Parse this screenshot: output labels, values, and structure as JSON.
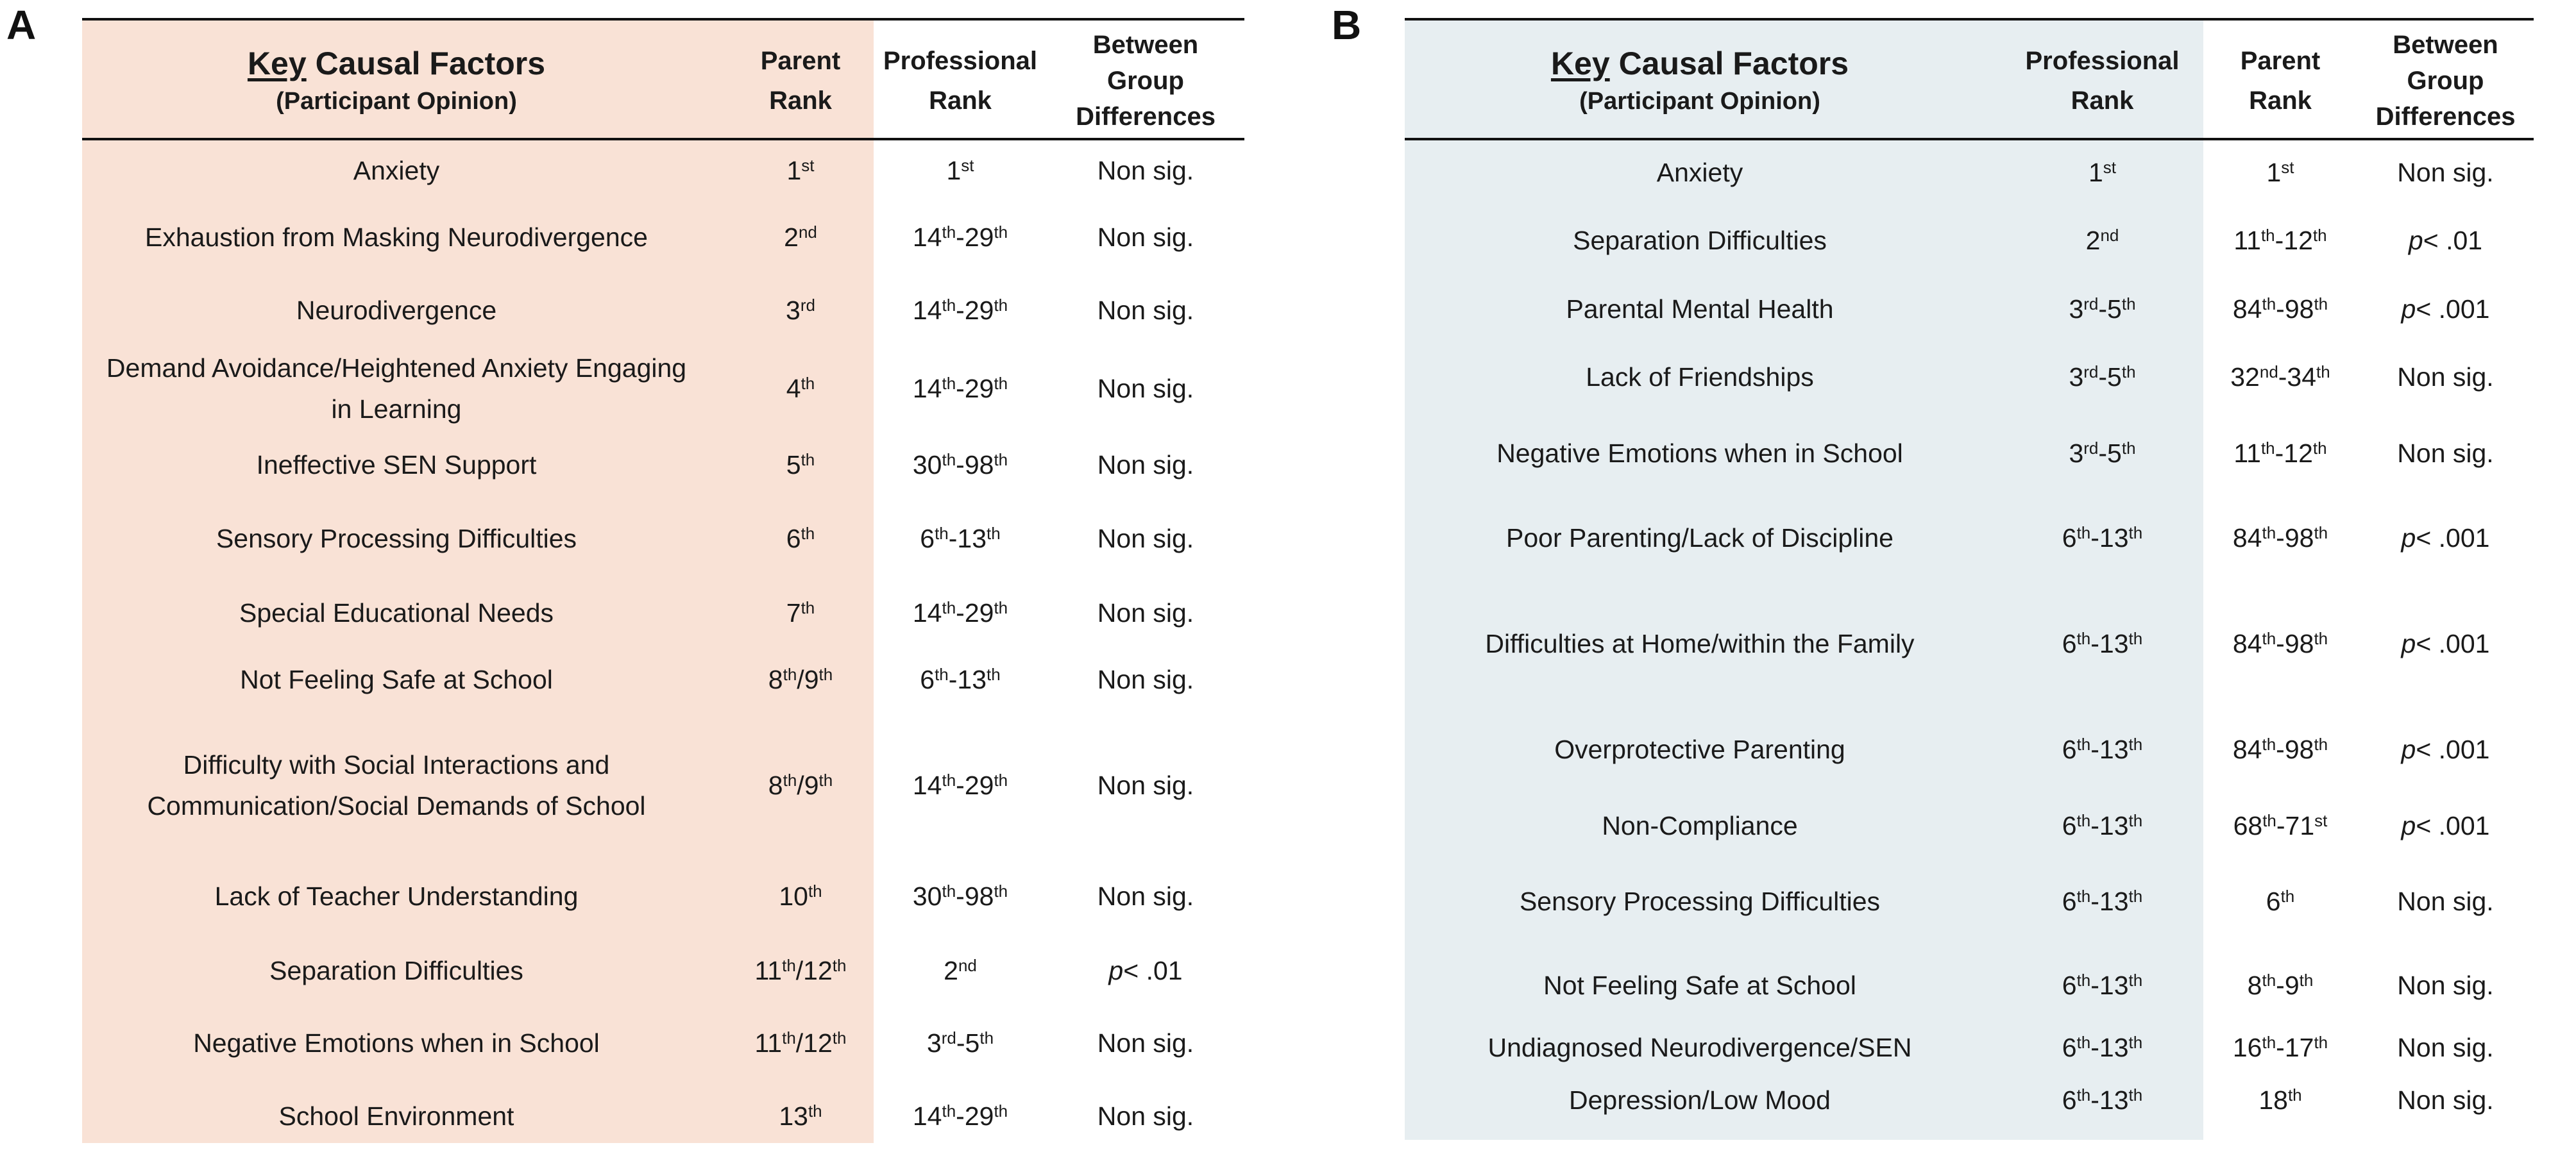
{
  "panel_a": {
    "label": "A",
    "headers": {
      "factor_key": "Key",
      "factor_rest": " Causal Factors",
      "factor_sub": "(Participant Opinion)",
      "col2": [
        "Parent",
        "Rank"
      ],
      "col3": [
        "Professional",
        "Rank"
      ],
      "col4": [
        "Between",
        "Group",
        "Differences"
      ]
    },
    "rows": [
      {
        "factor": "Anxiety",
        "r1": [
          [
            "1",
            "st"
          ]
        ],
        "r2": [
          [
            "1",
            "st"
          ]
        ],
        "diff": "Non sig."
      },
      {
        "factor": "Exhaustion from Masking Neurodivergence",
        "r1": [
          [
            "2",
            "nd"
          ]
        ],
        "r2": [
          [
            "14",
            "th"
          ],
          [
            "-29",
            "th"
          ]
        ],
        "diff": "Non sig."
      },
      {
        "factor": "Neurodivergence",
        "r1": [
          [
            "3",
            "rd"
          ]
        ],
        "r2": [
          [
            "14",
            "th"
          ],
          [
            "-29",
            "th"
          ]
        ],
        "diff": "Non sig."
      },
      {
        "factor": "Demand Avoidance/Heightened Anxiety Engaging in Learning",
        "r1": [
          [
            "4",
            "th"
          ]
        ],
        "r2": [
          [
            "14",
            "th"
          ],
          [
            "-29",
            "th"
          ]
        ],
        "diff": "Non sig."
      },
      {
        "factor": "Ineffective SEN Support",
        "r1": [
          [
            "5",
            "th"
          ]
        ],
        "r2": [
          [
            "30",
            "th"
          ],
          [
            "-98",
            "th"
          ]
        ],
        "diff": "Non sig."
      },
      {
        "factor": "Sensory Processing Difficulties",
        "r1": [
          [
            "6",
            "th"
          ]
        ],
        "r2": [
          [
            "6",
            "th"
          ],
          [
            "-13",
            "th"
          ]
        ],
        "diff": "Non sig."
      },
      {
        "factor": "Special Educational Needs",
        "r1": [
          [
            "7",
            "th"
          ]
        ],
        "r2": [
          [
            "14",
            "th"
          ],
          [
            "-29",
            "th"
          ]
        ],
        "diff": "Non sig."
      },
      {
        "factor": "Not Feeling Safe at School",
        "r1": [
          [
            "8",
            "th"
          ],
          [
            "/9",
            "th"
          ]
        ],
        "r2": [
          [
            "6",
            "th"
          ],
          [
            "-13",
            "th"
          ]
        ],
        "diff": "Non sig."
      },
      {
        "factor": "Difficulty with Social Interactions and Communication/Social Demands of School",
        "r1": [
          [
            "8",
            "th"
          ],
          [
            "/9",
            "th"
          ]
        ],
        "r2": [
          [
            "14",
            "th"
          ],
          [
            "-29",
            "th"
          ]
        ],
        "diff": "Non sig."
      },
      {
        "factor": "Lack of Teacher Understanding",
        "r1": [
          [
            "10",
            "th"
          ]
        ],
        "r2": [
          [
            "30",
            "th"
          ],
          [
            "-98",
            "th"
          ]
        ],
        "diff": "Non sig."
      },
      {
        "factor": "Separation Difficulties",
        "r1": [
          [
            "11",
            "th"
          ],
          [
            "/12",
            "th"
          ]
        ],
        "r2": [
          [
            "2",
            "nd"
          ]
        ],
        "diff": "p < .01"
      },
      {
        "factor": "Negative Emotions when in School",
        "r1": [
          [
            "11",
            "th"
          ],
          [
            "/12",
            "th"
          ]
        ],
        "r2": [
          [
            "3",
            "rd"
          ],
          [
            "-5",
            "th"
          ]
        ],
        "diff": "Non sig."
      },
      {
        "factor": "School Environment",
        "r1": [
          [
            "13",
            "th"
          ]
        ],
        "r2": [
          [
            "14",
            "th"
          ],
          [
            "-29",
            "th"
          ]
        ],
        "diff": "Non sig."
      }
    ]
  },
  "panel_b": {
    "label": "B",
    "headers": {
      "factor_key": "Key",
      "factor_rest": " Causal Factors",
      "factor_sub": "(Participant Opinion)",
      "col2": [
        "Professional",
        "Rank"
      ],
      "col3": [
        "Parent",
        "Rank"
      ],
      "col4": [
        "Between",
        "Group",
        "Differences"
      ]
    },
    "rows": [
      {
        "factor": "Anxiety",
        "r1": [
          [
            "1",
            "st"
          ]
        ],
        "r2": [
          [
            "1",
            "st"
          ]
        ],
        "diff": "Non sig."
      },
      {
        "factor": "Separation Difficulties",
        "r1": [
          [
            "2",
            "nd"
          ]
        ],
        "r2": [
          [
            "11",
            "th"
          ],
          [
            "-12",
            "th"
          ]
        ],
        "diff": "p < .01"
      },
      {
        "factor": "Parental Mental Health",
        "r1": [
          [
            "3",
            "rd"
          ],
          [
            "-5",
            "th"
          ]
        ],
        "r2": [
          [
            "84",
            "th"
          ],
          [
            "-98",
            "th"
          ]
        ],
        "diff": "p < .001"
      },
      {
        "factor": "Lack of Friendships",
        "r1": [
          [
            "3",
            "rd"
          ],
          [
            "-5",
            "th"
          ]
        ],
        "r2": [
          [
            "32",
            "nd"
          ],
          [
            "-34",
            "th"
          ]
        ],
        "diff": "Non sig."
      },
      {
        "factor": "Negative Emotions when in School",
        "r1": [
          [
            "3",
            "rd"
          ],
          [
            "-5",
            "th"
          ]
        ],
        "r2": [
          [
            "11",
            "th"
          ],
          [
            "-12",
            "th"
          ]
        ],
        "diff": "Non sig."
      },
      {
        "factor": "Poor Parenting/Lack of Discipline",
        "r1": [
          [
            "6",
            "th"
          ],
          [
            "-13",
            "th"
          ]
        ],
        "r2": [
          [
            "84",
            "th"
          ],
          [
            "-98",
            "th"
          ]
        ],
        "diff": "p < .001"
      },
      {
        "factor": "Difficulties at Home/within the Family",
        "r1": [
          [
            "6",
            "th"
          ],
          [
            "-13",
            "th"
          ]
        ],
        "r2": [
          [
            "84",
            "th"
          ],
          [
            "-98",
            "th"
          ]
        ],
        "diff": "p < .001"
      },
      {
        "factor": "Overprotective Parenting",
        "r1": [
          [
            "6",
            "th"
          ],
          [
            "-13",
            "th"
          ]
        ],
        "r2": [
          [
            "84",
            "th"
          ],
          [
            "-98",
            "th"
          ]
        ],
        "diff": "p < .001"
      },
      {
        "factor": "Non-Compliance",
        "r1": [
          [
            "6",
            "th"
          ],
          [
            "-13",
            "th"
          ]
        ],
        "r2": [
          [
            "68",
            "th"
          ],
          [
            "-71",
            "st"
          ]
        ],
        "diff": "p < .001"
      },
      {
        "factor": "Sensory Processing Difficulties",
        "r1": [
          [
            "6",
            "th"
          ],
          [
            "-13",
            "th"
          ]
        ],
        "r2": [
          [
            "6",
            "th"
          ]
        ],
        "diff": "Non sig."
      },
      {
        "factor": "Not Feeling Safe at School",
        "r1": [
          [
            "6",
            "th"
          ],
          [
            "-13",
            "th"
          ]
        ],
        "r2": [
          [
            "8",
            "th"
          ],
          [
            "-9",
            "th"
          ]
        ],
        "diff": "Non sig."
      },
      {
        "factor": "Undiagnosed Neurodivergence/SEN",
        "r1": [
          [
            "6",
            "th"
          ],
          [
            "-13",
            "th"
          ]
        ],
        "r2": [
          [
            "16",
            "th"
          ],
          [
            "-17",
            "th"
          ]
        ],
        "diff": "Non sig."
      },
      {
        "factor": "Depression/Low Mood",
        "r1": [
          [
            "6",
            "th"
          ],
          [
            "-13",
            "th"
          ]
        ],
        "r2": [
          [
            "18",
            "th"
          ]
        ],
        "diff": "Non sig."
      }
    ]
  }
}
